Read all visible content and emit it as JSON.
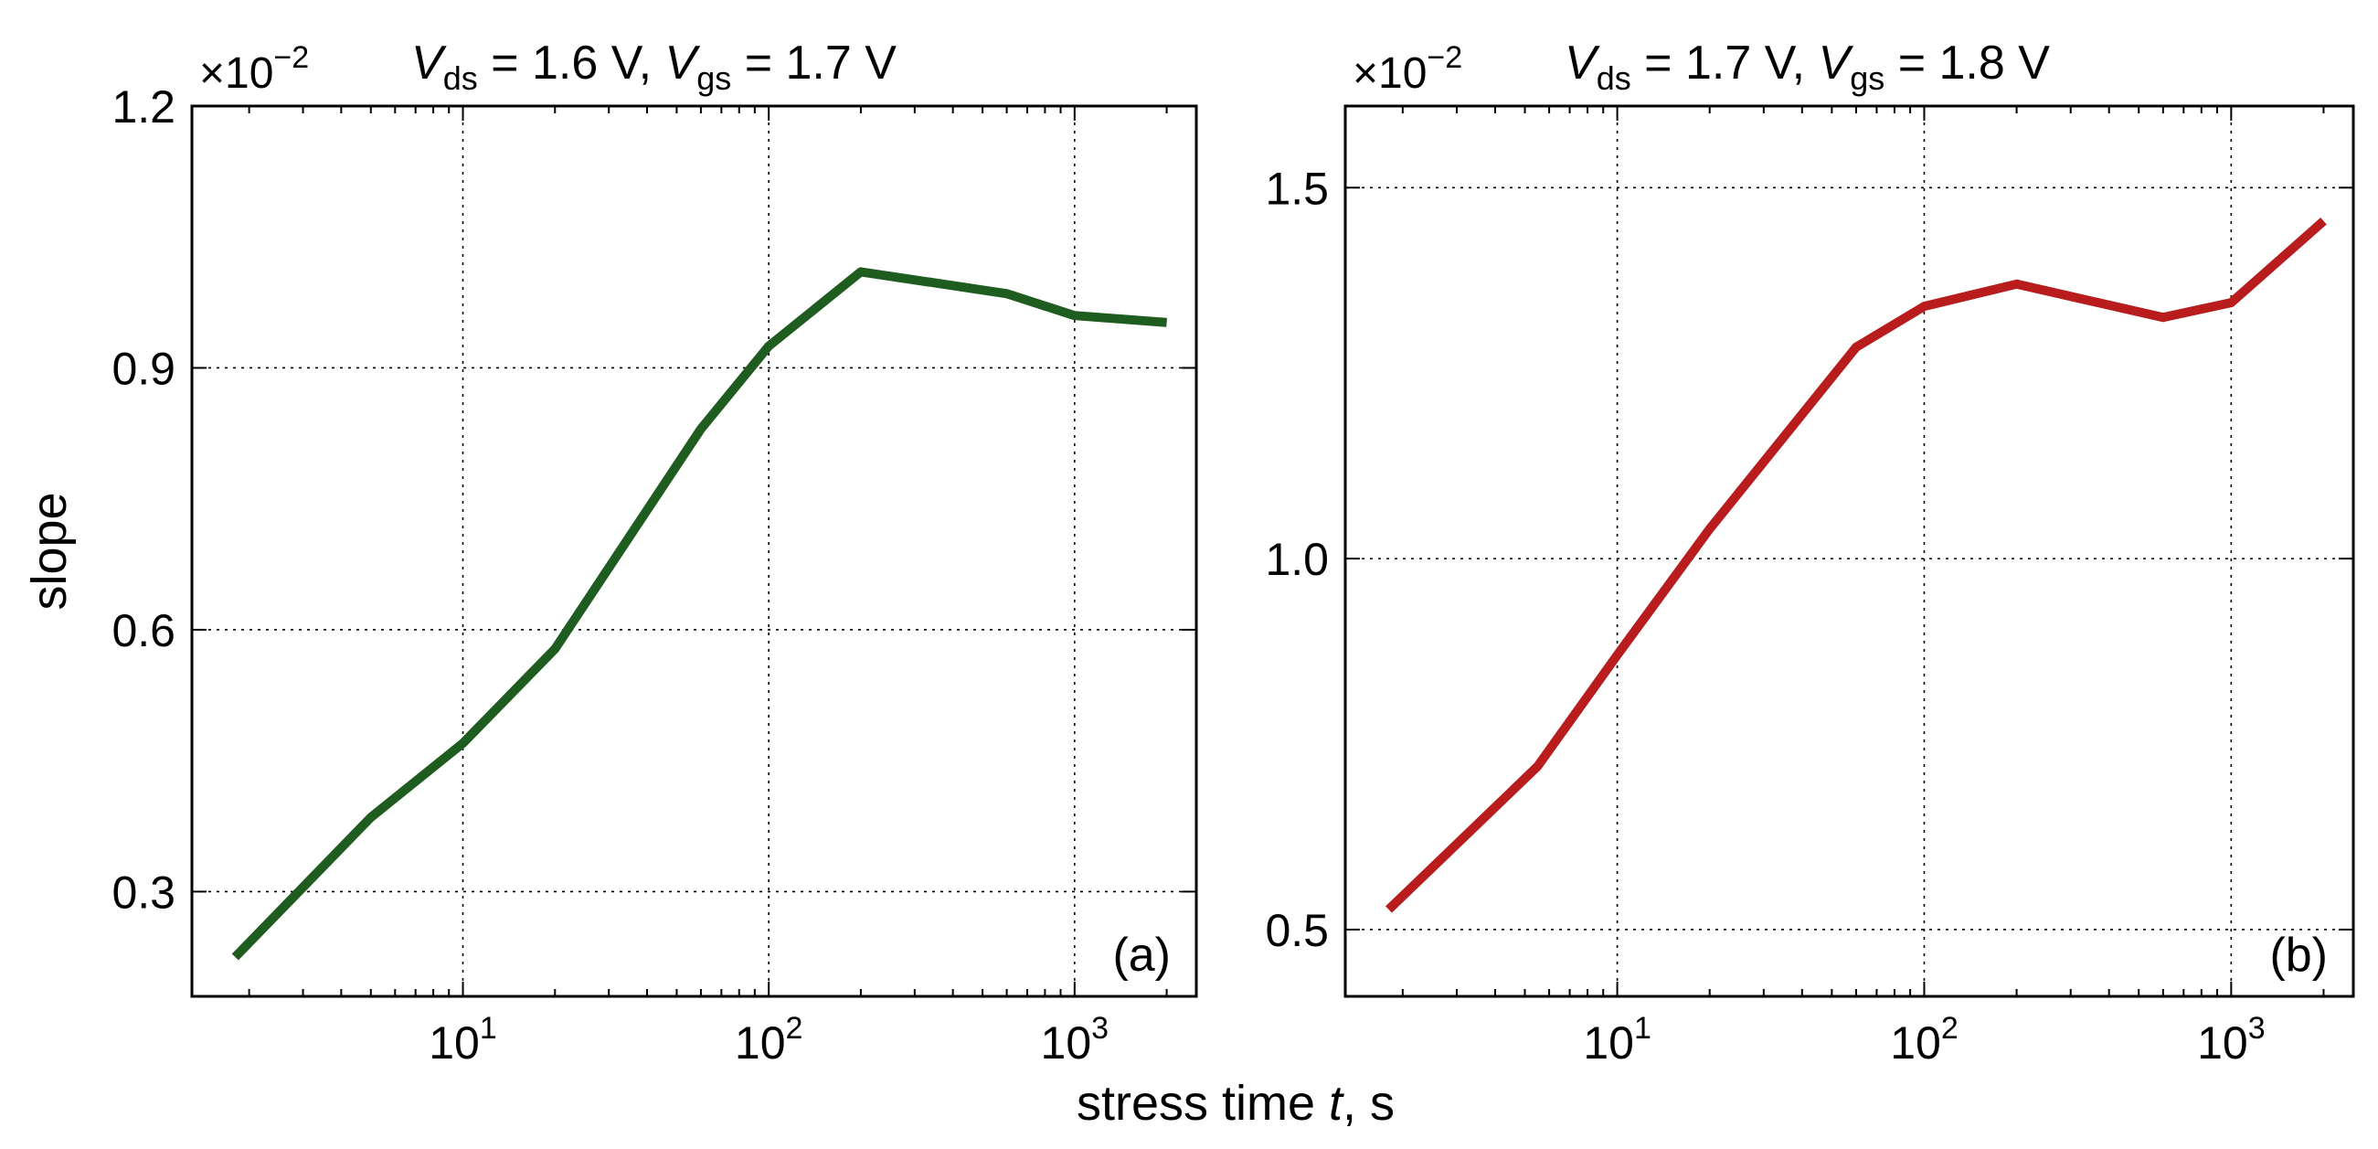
{
  "figure": {
    "shared_xlabel": "stress time t, s"
  },
  "chart_data": [
    {
      "type": "line",
      "panel_label": "(a)",
      "title": {
        "v1_sym": "V",
        "v1_sub": "ds",
        "v1_val": " = 1.6 V, ",
        "v2_sym": "V",
        "v2_sub": "gs",
        "v2_val": " = 1.7 V"
      },
      "ylabel": "slope",
      "exponent": {
        "base": "×10",
        "power": "−2"
      },
      "xscale": "log",
      "xlim": [
        1.3,
        2500
      ],
      "ylim": [
        0.18,
        1.2
      ],
      "xticks": [
        {
          "value": 10,
          "base": "10",
          "exp": "1"
        },
        {
          "value": 100,
          "base": "10",
          "exp": "2"
        },
        {
          "value": 1000,
          "base": "10",
          "exp": "3"
        }
      ],
      "yticks": [
        {
          "value": 0.3,
          "label": "0.3"
        },
        {
          "value": 0.6,
          "label": "0.6"
        },
        {
          "value": 0.9,
          "label": "0.9"
        },
        {
          "value": 1.2,
          "label": "1.2"
        }
      ],
      "grid": true,
      "color": "#1f5c1f",
      "series": [
        {
          "name": "slope",
          "x": [
            1.8,
            5,
            10,
            20,
            60,
            100,
            200,
            600,
            1000,
            2000
          ],
          "y": [
            0.225,
            0.385,
            0.47,
            0.578,
            0.83,
            0.925,
            1.01,
            0.985,
            0.96,
            0.952
          ]
        }
      ]
    },
    {
      "type": "line",
      "panel_label": "(b)",
      "title": {
        "v1_sym": "V",
        "v1_sub": "ds",
        "v1_val": " = 1.7 V, ",
        "v2_sym": "V",
        "v2_sub": "gs",
        "v2_val": " = 1.8 V"
      },
      "ylabel": "",
      "exponent": {
        "base": "×10",
        "power": "−2"
      },
      "xscale": "log",
      "xlim": [
        1.3,
        2500
      ],
      "ylim": [
        0.41,
        1.61
      ],
      "xticks": [
        {
          "value": 10,
          "base": "10",
          "exp": "1"
        },
        {
          "value": 100,
          "base": "10",
          "exp": "2"
        },
        {
          "value": 1000,
          "base": "10",
          "exp": "3"
        }
      ],
      "yticks": [
        {
          "value": 0.5,
          "label": "0.5"
        },
        {
          "value": 1.0,
          "label": "1.0"
        },
        {
          "value": 1.5,
          "label": "1.5"
        }
      ],
      "grid": true,
      "color": "#b81c1c",
      "series": [
        {
          "name": "slope",
          "x": [
            1.8,
            5.5,
            10,
            20,
            60,
            100,
            200,
            600,
            1000,
            2000
          ],
          "y": [
            0.527,
            0.72,
            0.87,
            1.04,
            1.285,
            1.34,
            1.37,
            1.325,
            1.345,
            1.455
          ]
        }
      ]
    }
  ]
}
